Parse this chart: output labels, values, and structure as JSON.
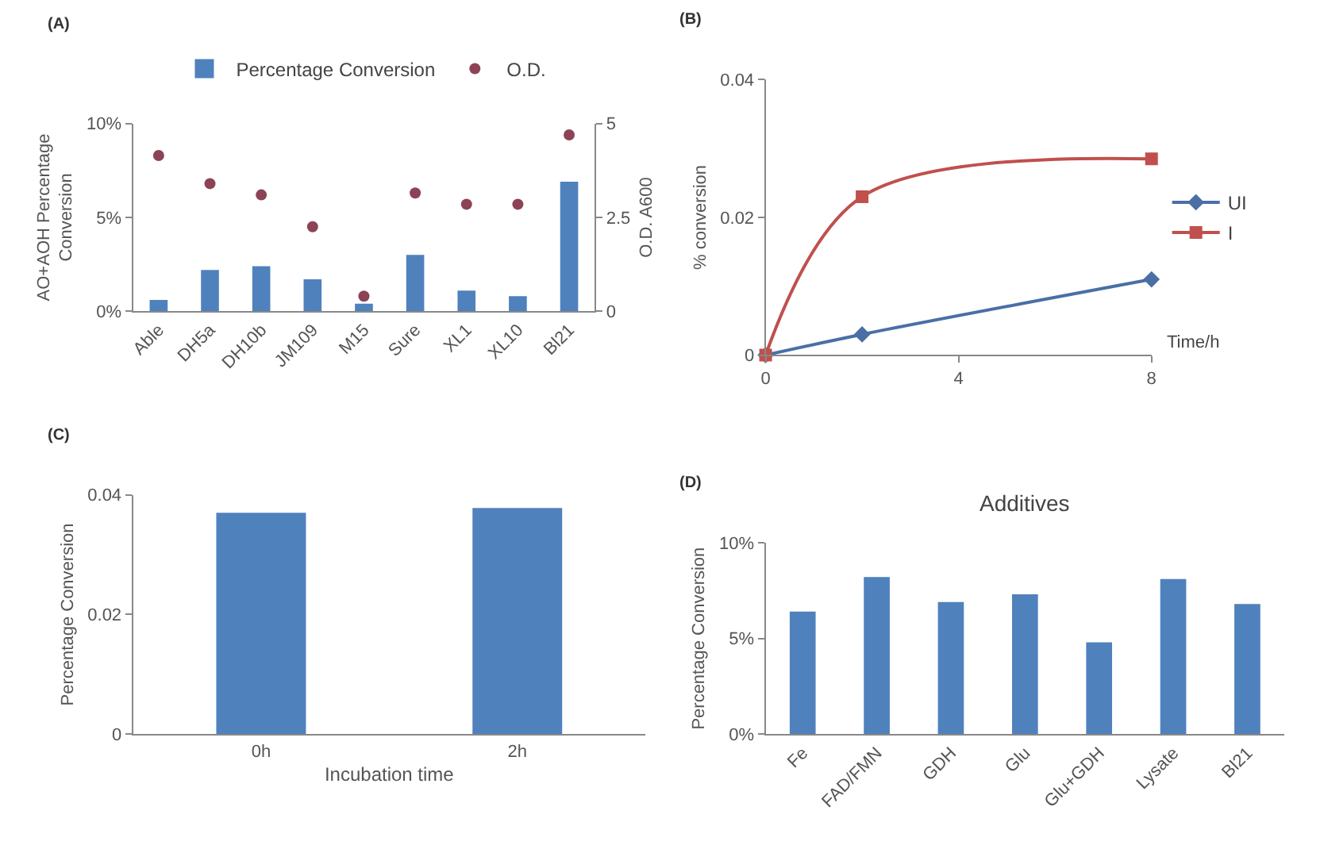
{
  "chart_data": [
    {
      "type": "bar",
      "title": "(A)",
      "categories": [
        "Able",
        "DH5a",
        "DH10b",
        "JM109",
        "M15",
        "Sure",
        "XL1",
        "XL10",
        "Bl21"
      ],
      "series": [
        {
          "name": "Percentage Conversion",
          "color": "#4f81bd",
          "values": [
            0.006,
            0.022,
            0.024,
            0.017,
            0.004,
            0.03,
            0.011,
            0.008,
            0.069
          ]
        },
        {
          "name": "O.D.",
          "type": "scatter",
          "axis": "y2",
          "marker": "circle",
          "color": "#8c4356",
          "values": [
            4.15,
            3.4,
            3.1,
            2.25,
            0.4,
            3.15,
            2.85,
            2.85,
            4.7
          ]
        }
      ],
      "ylabel": "AO+AOH Percentage Conversion",
      "y2label": "O.D. A600",
      "ylim": [
        0,
        0.1
      ],
      "yticks": [
        {
          "value": 0,
          "label": "0%"
        },
        {
          "value": 0.05,
          "label": "5%"
        },
        {
          "value": 0.1,
          "label": "10%"
        }
      ],
      "y2lim": [
        0,
        5
      ],
      "y2ticks": [
        0,
        2.5,
        5
      ],
      "legend": "top",
      "grid": false
    },
    {
      "type": "line",
      "title": "(B)",
      "x": [
        0,
        2,
        8
      ],
      "series": [
        {
          "name": "UI",
          "color": "#4a6fa5",
          "marker": "diamond",
          "values": [
            0,
            0.003,
            0.011
          ]
        },
        {
          "name": "I",
          "color": "#c0504d",
          "marker": "square",
          "values": [
            0,
            0.023,
            0.0285
          ]
        }
      ],
      "xlabel": "Time/h",
      "ylabel": "% conversion",
      "xlim": [
        0,
        8
      ],
      "xticks": [
        0,
        4,
        8
      ],
      "ylim": [
        0,
        0.04
      ],
      "yticks": [
        0,
        0.02,
        0.04
      ],
      "legend": "right",
      "grid": false
    },
    {
      "type": "bar",
      "title": "(C)",
      "categories": [
        "0h",
        "2h"
      ],
      "series": [
        {
          "color": "#4f81bd",
          "values": [
            0.037,
            0.0378
          ]
        }
      ],
      "xlabel": "Incubation time",
      "ylabel": "Percentage Conversion",
      "ylim": [
        0,
        0.04
      ],
      "yticks": [
        0,
        0.02,
        0.04
      ],
      "legend": false,
      "grid": false
    },
    {
      "type": "bar",
      "title": "(D)",
      "subtitle": "Additives",
      "categories": [
        "Fe",
        "FAD/FMN",
        "GDH",
        "Glu",
        "Glu+GDH",
        "Lysate",
        "Bl21"
      ],
      "series": [
        {
          "color": "#4f81bd",
          "values": [
            0.064,
            0.082,
            0.069,
            0.073,
            0.048,
            0.081,
            0.068
          ]
        }
      ],
      "ylabel": "Percentage Conversion",
      "ylim": [
        0,
        0.1
      ],
      "yticks": [
        {
          "value": 0,
          "label": "0%"
        },
        {
          "value": 0.05,
          "label": "5%"
        },
        {
          "value": 0.1,
          "label": "10%"
        }
      ],
      "legend": false,
      "grid": false
    }
  ]
}
